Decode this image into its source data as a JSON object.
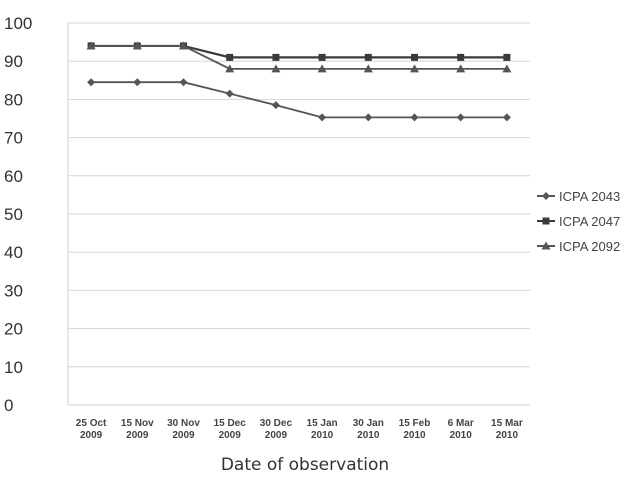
{
  "chart_data": {
    "type": "line",
    "x": [
      "25 Oct 2009",
      "15 Nov 2009",
      "30 Nov 2009",
      "15 Dec 2009",
      "30 Dec 2009",
      "15 Jan 2010",
      "30 Jan 2010",
      "15 Feb 2010",
      "6 Mar 2010",
      "15 Mar 2010"
    ],
    "x_tick_lines": [
      [
        "25 Oct",
        "2009"
      ],
      [
        "15 Nov",
        "2009"
      ],
      [
        "30 Nov",
        "2009"
      ],
      [
        "15 Dec",
        "2009"
      ],
      [
        "30 Dec",
        "2009"
      ],
      [
        "15 Jan",
        "2010"
      ],
      [
        "30 Jan",
        "2010"
      ],
      [
        "15 Feb",
        "2010"
      ],
      [
        "6 Mar",
        "2010"
      ],
      [
        "15 Mar",
        "2010"
      ]
    ],
    "series": [
      {
        "name": "ICPA 2043",
        "marker": "diamond",
        "values": [
          84.5,
          84.5,
          84.5,
          81.5,
          78.5,
          75.3,
          75.3,
          75.3,
          75.3,
          75.3
        ]
      },
      {
        "name": "ICPA 2047",
        "marker": "square",
        "values": [
          94,
          94,
          94,
          91,
          91,
          91,
          91,
          91,
          91,
          91
        ]
      },
      {
        "name": "ICPA 2092",
        "marker": "triangle",
        "values": [
          94,
          94,
          94,
          88,
          88,
          88,
          88,
          88,
          88,
          88
        ]
      }
    ],
    "y_ticks": [
      0,
      10,
      20,
      30,
      40,
      50,
      60,
      70,
      80,
      90,
      100
    ],
    "xlabel": "Date of observation",
    "ylabel": "",
    "title": "",
    "ylim": [
      0,
      100
    ],
    "grid": true,
    "legend_position": "right",
    "colors": {
      "line": "#555555",
      "grid": "#d6d6d6",
      "text": "#333333"
    }
  }
}
